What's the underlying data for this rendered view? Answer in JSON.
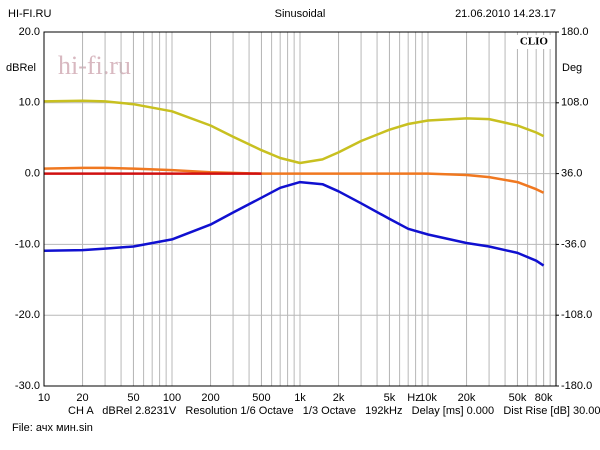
{
  "chart_data": {
    "type": "line",
    "header_left": "HI-FI.RU",
    "title": "Sinusoidal",
    "header_right": "21.06.2010 14.23.17",
    "ylabel": "dBRel",
    "y2label": "Deg",
    "brand": "CLIO",
    "watermark": "hi-fi.ru",
    "x_unit": "Hz",
    "footer": "CH A   dBRel 2.8231V   Resolution 1/6 Octave   1/3 Octave   192kHz   Delay [ms] 0.000   Dist Rise [dB] 30.00",
    "file": "File: ачх мин.sin",
    "log_x": true,
    "xlim": [
      10,
      100000
    ],
    "xticks": [
      10,
      20,
      50,
      100,
      200,
      500,
      {
        "value": 1000,
        "label": "1k"
      },
      {
        "value": 2000,
        "label": "2k"
      },
      {
        "value": 5000,
        "label": "5k"
      },
      {
        "value": 10000,
        "label": "10k"
      },
      {
        "value": 20000,
        "label": "20k"
      },
      {
        "value": 50000,
        "label": "50k"
      },
      {
        "value": 80000,
        "label": "80k"
      }
    ],
    "ylim": [
      -30,
      20
    ],
    "yticks": [
      {
        "value": 20,
        "label": "20.0"
      },
      {
        "value": 10,
        "label": "10.0"
      },
      {
        "value": 0,
        "label": "0.0"
      },
      {
        "value": -10,
        "label": "-10.0"
      },
      {
        "value": -20,
        "label": "-20.0"
      },
      {
        "value": -30,
        "label": "-30.0"
      }
    ],
    "y2lim": [
      -180,
      180
    ],
    "y2ticks": [
      {
        "value": 180,
        "label": "180.0"
      },
      {
        "value": 108,
        "label": "108.0"
      },
      {
        "value": 36,
        "label": "36.0"
      },
      {
        "value": -36,
        "label": "-36.0"
      },
      {
        "value": -108,
        "label": "-108.0"
      },
      {
        "value": -180,
        "label": "-180.0"
      }
    ],
    "x": [
      10,
      20,
      30,
      50,
      100,
      200,
      300,
      500,
      700,
      1000,
      1500,
      2000,
      3000,
      5000,
      7000,
      10000,
      20000,
      30000,
      50000,
      70000,
      80000
    ],
    "series": [
      {
        "color": "#c8c020",
        "values": [
          10.2,
          10.3,
          10.2,
          9.8,
          8.8,
          6.8,
          5.2,
          3.3,
          2.2,
          1.5,
          2.0,
          3.0,
          4.6,
          6.2,
          7.0,
          7.5,
          7.8,
          7.7,
          6.8,
          5.8,
          5.3
        ]
      },
      {
        "color": "#f07820",
        "values": [
          0.7,
          0.8,
          0.8,
          0.7,
          0.5,
          0.2,
          0.1,
          0,
          0,
          0,
          0,
          0,
          0,
          0,
          0,
          0,
          -0.2,
          -0.5,
          -1.2,
          -2.2,
          -2.7
        ]
      },
      {
        "color": "#d01010",
        "values": [
          0,
          0,
          0,
          0,
          0,
          0,
          0,
          0,
          null,
          null,
          null,
          null,
          null,
          null,
          null,
          null,
          null,
          null,
          null,
          null,
          null
        ]
      },
      {
        "color": "#1010d0",
        "values": [
          -10.9,
          -10.8,
          -10.6,
          -10.3,
          -9.3,
          -7.2,
          -5.5,
          -3.4,
          -2.0,
          -1.2,
          -1.5,
          -2.5,
          -4.2,
          -6.4,
          -7.8,
          -8.6,
          -9.8,
          -10.3,
          -11.2,
          -12.3,
          -13.0
        ]
      }
    ]
  }
}
